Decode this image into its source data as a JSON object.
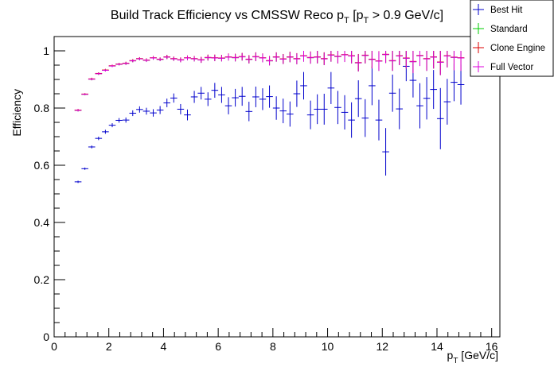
{
  "chart_data": {
    "type": "scatter",
    "title": "Build Track Efficiency vs CMSSW Reco p",
    "title_parts": {
      "pre": "Build Track Efficiency vs CMSSW Reco p",
      "sub1": "T",
      "mid": " [p",
      "sub2": "T",
      "post": " > 0.9 GeV/c]"
    },
    "xlabel": "p",
    "xlabel_sub": "T",
    "xlabel_post": " [GeV/c]",
    "ylabel": "Efficiency",
    "xlim": [
      0,
      16.3
    ],
    "ylim": [
      0,
      1.05
    ],
    "x_ticks": [
      0,
      2,
      4,
      6,
      8,
      10,
      12,
      14,
      16
    ],
    "x_tick_labels": [
      "0",
      "2",
      "4",
      "6",
      "8",
      "10",
      "12",
      "14",
      "16"
    ],
    "y_ticks": [
      0,
      0.2,
      0.4,
      0.6,
      0.8,
      1
    ],
    "y_tick_labels": [
      "0",
      "0.2",
      "0.4",
      "0.6",
      "0.8",
      "1"
    ],
    "grid": false,
    "legend_position": "top-right",
    "bin_half_width": 0.125,
    "x": [
      0.875,
      1.125,
      1.375,
      1.625,
      1.875,
      2.125,
      2.375,
      2.625,
      2.875,
      3.125,
      3.375,
      3.625,
      3.875,
      4.125,
      4.375,
      4.625,
      4.875,
      5.125,
      5.375,
      5.625,
      5.875,
      6.125,
      6.375,
      6.625,
      6.875,
      7.125,
      7.375,
      7.625,
      7.875,
      8.125,
      8.375,
      8.625,
      8.875,
      9.125,
      9.375,
      9.625,
      9.875,
      10.125,
      10.375,
      10.625,
      10.875,
      11.125,
      11.375,
      11.625,
      11.875,
      12.125,
      12.375,
      12.625,
      12.875,
      13.125,
      13.375,
      13.625,
      13.875,
      14.125,
      14.375,
      14.625,
      14.875
    ],
    "series": [
      {
        "name": "Best Hit",
        "color": "#0000cc",
        "values": [
          0.542,
          0.588,
          0.664,
          0.694,
          0.717,
          0.74,
          0.757,
          0.758,
          0.782,
          0.795,
          0.789,
          0.783,
          0.793,
          0.818,
          0.835,
          0.796,
          0.776,
          0.839,
          0.852,
          0.831,
          0.862,
          0.846,
          0.808,
          0.836,
          0.841,
          0.788,
          0.839,
          0.831,
          0.84,
          0.8,
          0.79,
          0.779,
          0.85,
          0.878,
          0.776,
          0.796,
          0.796,
          0.87,
          0.802,
          0.785,
          0.758,
          0.833,
          0.765,
          0.878,
          0.758,
          0.647,
          0.852,
          0.797,
          0.946,
          0.897,
          0.808,
          0.834,
          0.865,
          0.763,
          0.822,
          0.89,
          0.882
        ],
        "errors": [
          0.004,
          0.004,
          0.005,
          0.006,
          0.007,
          0.007,
          0.008,
          0.009,
          0.01,
          0.011,
          0.012,
          0.013,
          0.014,
          0.015,
          0.016,
          0.018,
          0.019,
          0.021,
          0.022,
          0.024,
          0.026,
          0.028,
          0.03,
          0.031,
          0.033,
          0.034,
          0.036,
          0.038,
          0.039,
          0.041,
          0.043,
          0.044,
          0.046,
          0.048,
          0.05,
          0.052,
          0.054,
          0.056,
          0.058,
          0.06,
          0.062,
          0.064,
          0.066,
          0.068,
          0.071,
          0.083,
          0.065,
          0.071,
          0.052,
          0.06,
          0.079,
          0.074,
          0.068,
          0.107,
          0.08,
          0.066,
          0.07
        ]
      },
      {
        "name": "Standard",
        "color": "#00cc00",
        "values": [
          0.792,
          0.848,
          0.901,
          0.92,
          0.932,
          0.947,
          0.953,
          0.956,
          0.965,
          0.972,
          0.967,
          0.975,
          0.97,
          0.978,
          0.972,
          0.968,
          0.975,
          0.972,
          0.968,
          0.976,
          0.975,
          0.974,
          0.978,
          0.976,
          0.979,
          0.97,
          0.979,
          0.975,
          0.965,
          0.978,
          0.971,
          0.978,
          0.972,
          0.982,
          0.976,
          0.978,
          0.972,
          0.985,
          0.98,
          0.986,
          0.982,
          0.958,
          0.984,
          0.97,
          0.964,
          0.987,
          0.965,
          0.982,
          0.974,
          0.962,
          0.983,
          0.972,
          0.978,
          0.96,
          0.982,
          0.977,
          0.975
        ],
        "errors": [
          0.004,
          0.003,
          0.004,
          0.004,
          0.004,
          0.004,
          0.004,
          0.005,
          0.005,
          0.005,
          0.006,
          0.006,
          0.006,
          0.007,
          0.007,
          0.008,
          0.008,
          0.009,
          0.01,
          0.01,
          0.011,
          0.011,
          0.012,
          0.013,
          0.013,
          0.014,
          0.015,
          0.015,
          0.016,
          0.016,
          0.017,
          0.018,
          0.019,
          0.02,
          0.021,
          0.022,
          0.022,
          0.023,
          0.024,
          0.025,
          0.026,
          0.03,
          0.028,
          0.032,
          0.034,
          0.03,
          0.035,
          0.032,
          0.036,
          0.04,
          0.036,
          0.042,
          0.04,
          0.045,
          0.04,
          0.045,
          0.045
        ]
      },
      {
        "name": "Clone Engine",
        "color": "#dd0000",
        "values": [
          0.793,
          0.849,
          0.902,
          0.921,
          0.933,
          0.948,
          0.954,
          0.957,
          0.966,
          0.973,
          0.968,
          0.976,
          0.971,
          0.979,
          0.973,
          0.969,
          0.976,
          0.973,
          0.969,
          0.977,
          0.976,
          0.975,
          0.979,
          0.977,
          0.98,
          0.971,
          0.98,
          0.976,
          0.966,
          0.979,
          0.972,
          0.979,
          0.973,
          0.983,
          0.977,
          0.979,
          0.973,
          0.986,
          0.981,
          0.987,
          0.983,
          0.959,
          0.985,
          0.971,
          0.965,
          0.988,
          0.966,
          0.983,
          0.975,
          0.963,
          0.984,
          0.973,
          0.979,
          0.961,
          0.983,
          0.978,
          0.976
        ],
        "errors": [
          0.004,
          0.003,
          0.004,
          0.004,
          0.004,
          0.004,
          0.004,
          0.005,
          0.005,
          0.005,
          0.006,
          0.006,
          0.006,
          0.007,
          0.007,
          0.008,
          0.008,
          0.009,
          0.01,
          0.01,
          0.011,
          0.011,
          0.012,
          0.013,
          0.013,
          0.014,
          0.015,
          0.015,
          0.016,
          0.016,
          0.017,
          0.018,
          0.019,
          0.02,
          0.021,
          0.022,
          0.022,
          0.023,
          0.024,
          0.025,
          0.026,
          0.03,
          0.028,
          0.032,
          0.034,
          0.03,
          0.035,
          0.032,
          0.036,
          0.04,
          0.036,
          0.042,
          0.04,
          0.045,
          0.04,
          0.045,
          0.045
        ]
      },
      {
        "name": "Full Vector",
        "color": "#dd00dd",
        "values": [
          0.792,
          0.848,
          0.901,
          0.92,
          0.932,
          0.947,
          0.953,
          0.956,
          0.965,
          0.972,
          0.967,
          0.975,
          0.97,
          0.978,
          0.972,
          0.968,
          0.975,
          0.972,
          0.968,
          0.976,
          0.975,
          0.974,
          0.978,
          0.976,
          0.979,
          0.97,
          0.979,
          0.975,
          0.965,
          0.978,
          0.971,
          0.978,
          0.972,
          0.982,
          0.976,
          0.978,
          0.972,
          0.985,
          0.98,
          0.986,
          0.982,
          0.958,
          0.984,
          0.97,
          0.964,
          0.987,
          0.965,
          0.982,
          0.974,
          0.962,
          0.983,
          0.972,
          0.978,
          0.96,
          0.982,
          0.977,
          0.975
        ],
        "errors": [
          0.004,
          0.003,
          0.004,
          0.004,
          0.004,
          0.004,
          0.004,
          0.005,
          0.005,
          0.005,
          0.006,
          0.006,
          0.006,
          0.007,
          0.007,
          0.008,
          0.008,
          0.009,
          0.01,
          0.01,
          0.011,
          0.011,
          0.012,
          0.013,
          0.013,
          0.014,
          0.015,
          0.015,
          0.016,
          0.016,
          0.017,
          0.018,
          0.019,
          0.02,
          0.021,
          0.022,
          0.022,
          0.023,
          0.024,
          0.025,
          0.026,
          0.03,
          0.028,
          0.032,
          0.034,
          0.03,
          0.035,
          0.032,
          0.036,
          0.04,
          0.036,
          0.042,
          0.04,
          0.045,
          0.04,
          0.045,
          0.045
        ]
      }
    ]
  }
}
